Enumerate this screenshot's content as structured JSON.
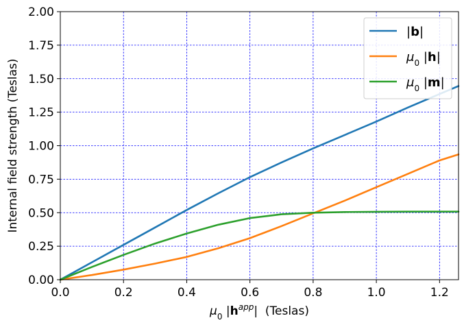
{
  "chart_data": {
    "type": "line",
    "xlabel": {
      "base": "μ",
      "sub": "0",
      "bar_open": " |",
      "vec": "h",
      "sup": "app",
      "bar_close": "|",
      "unit": "  (Teslas)"
    },
    "ylabel": "Internal field strength (Teslas)",
    "xlim": [
      0,
      1.26
    ],
    "ylim": [
      0,
      2.0
    ],
    "xticks": [
      0.0,
      0.2,
      0.4,
      0.6,
      0.8,
      1.0,
      1.2
    ],
    "xtick_labels": [
      "0.0",
      "0.2",
      "0.4",
      "0.6",
      "0.8",
      "1.0",
      "1.2"
    ],
    "yticks": [
      0,
      0.25,
      0.5,
      0.75,
      1.0,
      1.25,
      1.5,
      1.75,
      2.0
    ],
    "ytick_labels": [
      "0.00",
      "0.25",
      "0.50",
      "0.75",
      "1.00",
      "1.25",
      "1.50",
      "1.75",
      "2.00"
    ],
    "grid": true,
    "legend_position": "top-right",
    "series": [
      {
        "name": "|b|",
        "legend": {
          "prefix": "",
          "bar_open": "|",
          "vec": "b",
          "bar_close": "|"
        },
        "color": "#1f77b4",
        "x": [
          0.0,
          0.1,
          0.2,
          0.3,
          0.4,
          0.5,
          0.6,
          0.7,
          0.8,
          0.9,
          1.0,
          1.1,
          1.2,
          1.26
        ],
        "y": [
          0.0,
          0.13,
          0.26,
          0.39,
          0.52,
          0.645,
          0.765,
          0.875,
          0.98,
          1.08,
          1.18,
          1.285,
          1.385,
          1.445
        ]
      },
      {
        "name": "μ0 |h|",
        "legend": {
          "prefix": "μ",
          "sub": "0",
          "bar_open": "|",
          "vec": "h",
          "bar_close": "|"
        },
        "color": "#ff7f0e",
        "x": [
          0.0,
          0.1,
          0.2,
          0.3,
          0.4,
          0.5,
          0.6,
          0.7,
          0.8,
          0.9,
          1.0,
          1.1,
          1.2,
          1.26
        ],
        "y": [
          0.0,
          0.035,
          0.075,
          0.12,
          0.17,
          0.235,
          0.31,
          0.4,
          0.495,
          0.59,
          0.69,
          0.79,
          0.89,
          0.935
        ]
      },
      {
        "name": "μ0 |m|",
        "legend": {
          "prefix": "μ",
          "sub": "0",
          "bar_open": "|",
          "vec": "m",
          "bar_close": "|"
        },
        "color": "#2ca02c",
        "x": [
          0.0,
          0.1,
          0.2,
          0.3,
          0.4,
          0.5,
          0.6,
          0.7,
          0.8,
          0.9,
          1.0,
          1.1,
          1.2,
          1.26
        ],
        "y": [
          0.0,
          0.095,
          0.185,
          0.27,
          0.345,
          0.41,
          0.46,
          0.488,
          0.5,
          0.505,
          0.507,
          0.508,
          0.508,
          0.508
        ]
      }
    ]
  }
}
